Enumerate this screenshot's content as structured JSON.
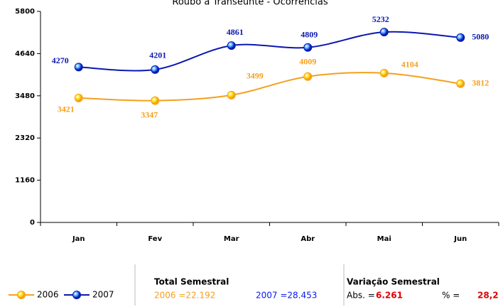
{
  "chart_data": {
    "type": "line",
    "title": "Roubo a Transeunte - Ocorrências",
    "categories": [
      "Jan",
      "Fev",
      "Mar",
      "Abr",
      "Mai",
      "Jun"
    ],
    "series": [
      {
        "name": "2006",
        "color": "#f5a01e",
        "marker_color": "#ffe000",
        "values": [
          3421,
          3347,
          3499,
          4009,
          4104,
          3812
        ]
      },
      {
        "name": "2007",
        "color": "#0b18b0",
        "marker_color": "#3a9cff",
        "values": [
          4270,
          4201,
          4861,
          4809,
          5232,
          5080
        ]
      }
    ],
    "ylim": [
      0,
      5800
    ],
    "yticks": [
      0,
      1160,
      2320,
      3480,
      4640,
      5800
    ],
    "grid": false,
    "smooth": true
  },
  "summary": {
    "total": {
      "title": "Total Semestral",
      "items": [
        "2006 =22.192",
        "2007 =28.453"
      ]
    },
    "variation": {
      "title": "Variação Semestral",
      "abs_label": "Abs. =",
      "abs_value": "6.261",
      "pct_label": "% =",
      "pct_value": "28,2"
    }
  }
}
